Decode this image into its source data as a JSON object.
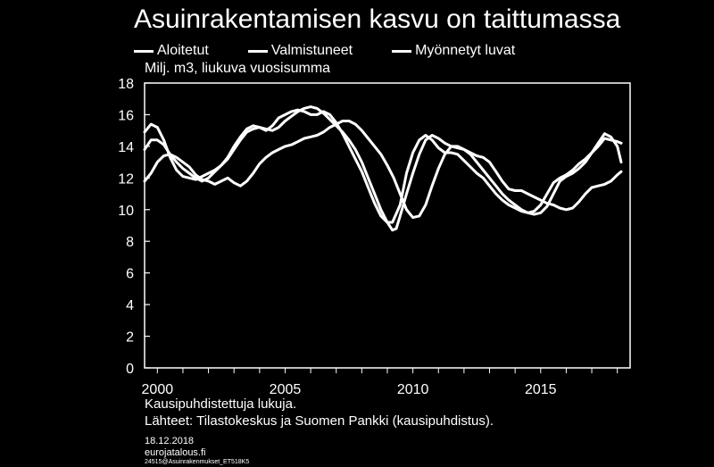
{
  "chart_data": {
    "type": "line",
    "title": "Asuinrakentamisen kasvu on taittumassa",
    "ylabel": "Milj. m3, liukuva vuosisumma",
    "xlabel": "",
    "xlim": [
      1999.5,
      2018.5
    ],
    "ylim": [
      0,
      18
    ],
    "x_ticks": [
      2000,
      2005,
      2010,
      2015
    ],
    "y_ticks": [
      0,
      2,
      4,
      6,
      8,
      10,
      12,
      14,
      16,
      18
    ],
    "grid": false,
    "legend_position": "top",
    "series": [
      {
        "name": "Aloitetut",
        "color": "#ffffff",
        "points": [
          [
            1999.5,
            13.8
          ],
          [
            1999.75,
            14.4
          ],
          [
            2000.0,
            14.4
          ],
          [
            2000.25,
            14.1
          ],
          [
            2000.5,
            13.5
          ],
          [
            2000.75,
            13.0
          ],
          [
            2001.0,
            12.6
          ],
          [
            2001.25,
            12.3
          ],
          [
            2001.5,
            12.0
          ],
          [
            2001.75,
            11.8
          ],
          [
            2002.0,
            12.0
          ],
          [
            2002.25,
            12.4
          ],
          [
            2002.5,
            12.8
          ],
          [
            2002.75,
            13.2
          ],
          [
            2003.0,
            13.8
          ],
          [
            2003.25,
            14.4
          ],
          [
            2003.5,
            14.9
          ],
          [
            2003.75,
            15.1
          ],
          [
            2004.0,
            15.2
          ],
          [
            2004.25,
            15.1
          ],
          [
            2004.5,
            15.0
          ],
          [
            2004.75,
            15.2
          ],
          [
            2005.0,
            15.6
          ],
          [
            2005.25,
            15.9
          ],
          [
            2005.5,
            16.2
          ],
          [
            2005.75,
            16.4
          ],
          [
            2006.0,
            16.5
          ],
          [
            2006.25,
            16.4
          ],
          [
            2006.5,
            16.1
          ],
          [
            2006.75,
            15.7
          ],
          [
            2007.0,
            15.3
          ],
          [
            2007.25,
            14.9
          ],
          [
            2007.5,
            14.4
          ],
          [
            2007.75,
            13.8
          ],
          [
            2008.0,
            13.0
          ],
          [
            2008.25,
            12.0
          ],
          [
            2008.5,
            11.0
          ],
          [
            2008.75,
            10.0
          ],
          [
            2009.0,
            9.2
          ],
          [
            2009.2,
            8.7
          ],
          [
            2009.35,
            8.8
          ],
          [
            2009.5,
            9.6
          ],
          [
            2009.75,
            11.0
          ],
          [
            2010.0,
            12.3
          ],
          [
            2010.25,
            13.5
          ],
          [
            2010.5,
            14.4
          ],
          [
            2010.75,
            14.7
          ],
          [
            2011.0,
            14.5
          ],
          [
            2011.25,
            14.2
          ],
          [
            2011.5,
            14.0
          ],
          [
            2011.75,
            13.9
          ],
          [
            2012.0,
            13.8
          ],
          [
            2012.25,
            13.5
          ],
          [
            2012.5,
            13.0
          ],
          [
            2012.75,
            12.5
          ],
          [
            2013.0,
            12.0
          ],
          [
            2013.25,
            11.5
          ],
          [
            2013.5,
            11.0
          ],
          [
            2013.75,
            10.6
          ],
          [
            2014.0,
            10.3
          ],
          [
            2014.25,
            10.0
          ],
          [
            2014.5,
            9.8
          ],
          [
            2014.75,
            9.7
          ],
          [
            2015.0,
            9.8
          ],
          [
            2015.25,
            10.2
          ],
          [
            2015.5,
            11.0
          ],
          [
            2015.75,
            11.8
          ],
          [
            2016.0,
            12.1
          ],
          [
            2016.25,
            12.3
          ],
          [
            2016.5,
            12.6
          ],
          [
            2016.75,
            13.0
          ],
          [
            2017.0,
            13.6
          ],
          [
            2017.25,
            14.2
          ],
          [
            2017.5,
            14.8
          ],
          [
            2017.75,
            14.6
          ],
          [
            2018.0,
            14.0
          ],
          [
            2018.15,
            13.0
          ]
        ]
      },
      {
        "name": "Valmistuneet",
        "color": "#ffffff",
        "points": [
          [
            1999.5,
            11.8
          ],
          [
            1999.75,
            12.3
          ],
          [
            2000.0,
            13.0
          ],
          [
            2000.25,
            13.4
          ],
          [
            2000.5,
            13.5
          ],
          [
            2000.75,
            13.3
          ],
          [
            2001.0,
            13.0
          ],
          [
            2001.25,
            12.7
          ],
          [
            2001.5,
            12.2
          ],
          [
            2001.75,
            11.9
          ],
          [
            2002.0,
            11.8
          ],
          [
            2002.25,
            11.6
          ],
          [
            2002.5,
            11.8
          ],
          [
            2002.75,
            12.0
          ],
          [
            2003.0,
            11.7
          ],
          [
            2003.25,
            11.5
          ],
          [
            2003.5,
            11.8
          ],
          [
            2003.75,
            12.3
          ],
          [
            2004.0,
            12.9
          ],
          [
            2004.25,
            13.3
          ],
          [
            2004.5,
            13.6
          ],
          [
            2004.75,
            13.8
          ],
          [
            2005.0,
            14.0
          ],
          [
            2005.25,
            14.1
          ],
          [
            2005.5,
            14.3
          ],
          [
            2005.75,
            14.5
          ],
          [
            2006.0,
            14.6
          ],
          [
            2006.25,
            14.7
          ],
          [
            2006.5,
            14.9
          ],
          [
            2006.75,
            15.2
          ],
          [
            2007.0,
            15.4
          ],
          [
            2007.25,
            15.6
          ],
          [
            2007.5,
            15.6
          ],
          [
            2007.75,
            15.4
          ],
          [
            2008.0,
            15.0
          ],
          [
            2008.25,
            14.5
          ],
          [
            2008.5,
            14.0
          ],
          [
            2008.75,
            13.5
          ],
          [
            2009.0,
            12.8
          ],
          [
            2009.25,
            12.0
          ],
          [
            2009.5,
            11.0
          ],
          [
            2009.75,
            10.0
          ],
          [
            2010.0,
            9.5
          ],
          [
            2010.25,
            9.6
          ],
          [
            2010.5,
            10.3
          ],
          [
            2010.75,
            11.5
          ],
          [
            2011.0,
            12.6
          ],
          [
            2011.25,
            13.5
          ],
          [
            2011.5,
            14.0
          ],
          [
            2011.75,
            14.0
          ],
          [
            2012.0,
            13.8
          ],
          [
            2012.25,
            13.6
          ],
          [
            2012.5,
            13.4
          ],
          [
            2012.75,
            13.3
          ],
          [
            2013.0,
            13.0
          ],
          [
            2013.25,
            12.4
          ],
          [
            2013.5,
            11.8
          ],
          [
            2013.75,
            11.3
          ],
          [
            2014.0,
            11.2
          ],
          [
            2014.25,
            11.2
          ],
          [
            2014.5,
            11.0
          ],
          [
            2014.75,
            10.8
          ],
          [
            2015.0,
            10.6
          ],
          [
            2015.25,
            10.4
          ],
          [
            2015.5,
            10.3
          ],
          [
            2015.75,
            10.1
          ],
          [
            2016.0,
            10.0
          ],
          [
            2016.25,
            10.1
          ],
          [
            2016.5,
            10.5
          ],
          [
            2016.75,
            11.0
          ],
          [
            2017.0,
            11.4
          ],
          [
            2017.25,
            11.5
          ],
          [
            2017.5,
            11.6
          ],
          [
            2017.75,
            11.8
          ],
          [
            2018.0,
            12.2
          ],
          [
            2018.15,
            12.4
          ]
        ]
      },
      {
        "name": "Myönnetyt luvat",
        "color": "#ffffff",
        "points": [
          [
            1999.5,
            14.9
          ],
          [
            1999.75,
            15.4
          ],
          [
            2000.0,
            15.2
          ],
          [
            2000.25,
            14.4
          ],
          [
            2000.5,
            13.3
          ],
          [
            2000.75,
            12.5
          ],
          [
            2001.0,
            12.1
          ],
          [
            2001.25,
            12.0
          ],
          [
            2001.5,
            11.9
          ],
          [
            2001.75,
            12.1
          ],
          [
            2002.0,
            12.3
          ],
          [
            2002.25,
            12.5
          ],
          [
            2002.5,
            12.8
          ],
          [
            2002.75,
            13.3
          ],
          [
            2003.0,
            14.0
          ],
          [
            2003.25,
            14.6
          ],
          [
            2003.5,
            15.1
          ],
          [
            2003.75,
            15.3
          ],
          [
            2004.0,
            15.2
          ],
          [
            2004.25,
            15.0
          ],
          [
            2004.5,
            15.3
          ],
          [
            2004.75,
            15.8
          ],
          [
            2005.0,
            16.0
          ],
          [
            2005.25,
            16.2
          ],
          [
            2005.5,
            16.3
          ],
          [
            2005.75,
            16.2
          ],
          [
            2006.0,
            16.0
          ],
          [
            2006.25,
            16.0
          ],
          [
            2006.5,
            16.2
          ],
          [
            2006.75,
            16.0
          ],
          [
            2007.0,
            15.5
          ],
          [
            2007.25,
            14.8
          ],
          [
            2007.5,
            14.0
          ],
          [
            2007.75,
            13.2
          ],
          [
            2008.0,
            12.4
          ],
          [
            2008.25,
            11.4
          ],
          [
            2008.5,
            10.4
          ],
          [
            2008.75,
            9.6
          ],
          [
            2009.0,
            9.2
          ],
          [
            2009.2,
            9.2
          ],
          [
            2009.5,
            10.3
          ],
          [
            2009.75,
            12.3
          ],
          [
            2010.0,
            13.6
          ],
          [
            2010.25,
            14.4
          ],
          [
            2010.5,
            14.7
          ],
          [
            2010.75,
            14.4
          ],
          [
            2011.0,
            13.9
          ],
          [
            2011.25,
            13.6
          ],
          [
            2011.5,
            13.6
          ],
          [
            2011.75,
            13.5
          ],
          [
            2012.0,
            13.1
          ],
          [
            2012.25,
            12.7
          ],
          [
            2012.5,
            12.3
          ],
          [
            2012.75,
            12.0
          ],
          [
            2013.0,
            11.5
          ],
          [
            2013.25,
            11.0
          ],
          [
            2013.5,
            10.6
          ],
          [
            2013.75,
            10.3
          ],
          [
            2014.0,
            10.1
          ],
          [
            2014.25,
            9.9
          ],
          [
            2014.5,
            9.8
          ],
          [
            2014.75,
            9.9
          ],
          [
            2015.0,
            10.3
          ],
          [
            2015.25,
            11.0
          ],
          [
            2015.5,
            11.7
          ],
          [
            2015.75,
            12.0
          ],
          [
            2016.0,
            12.2
          ],
          [
            2016.25,
            12.5
          ],
          [
            2016.5,
            12.9
          ],
          [
            2016.75,
            13.2
          ],
          [
            2017.0,
            13.6
          ],
          [
            2017.25,
            14.0
          ],
          [
            2017.5,
            14.5
          ],
          [
            2017.75,
            14.4
          ],
          [
            2018.0,
            14.3
          ],
          [
            2018.15,
            14.2
          ]
        ]
      }
    ]
  },
  "notes": {
    "line1": "Kausipuhdistettuja lukuja.",
    "line2": "Lähteet: Tilastokeskus ja Suomen Pankki (kausipuhdistus)."
  },
  "footer": {
    "date": "18.12.2018",
    "site": "eurojatalous.fi",
    "code": "24515@Asuinrakenmukset_ET518K5"
  }
}
